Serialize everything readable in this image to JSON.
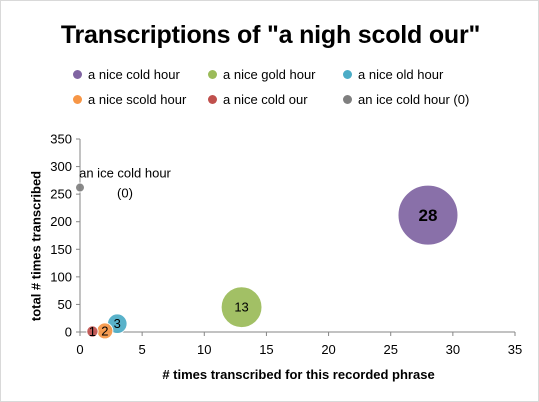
{
  "chart_data": {
    "type": "bubble",
    "title": "Transcriptions of \"a nigh scold our\"",
    "xlabel": "# times transcribed for this recorded phrase",
    "ylabel": "total # times transcribed",
    "xlim": [
      0,
      35
    ],
    "ylim": [
      0,
      350
    ],
    "x_ticks": [
      "0",
      "5",
      "10",
      "15",
      "20",
      "25",
      "30",
      "35"
    ],
    "y_ticks": [
      "0",
      "50",
      "100",
      "150",
      "200",
      "250",
      "300",
      "350"
    ],
    "grid": false,
    "legend_position": "top",
    "series": [
      {
        "name": "a nice cold hour",
        "color": "#8064a2",
        "x": 28,
        "y": 212,
        "size": 28,
        "label": "28"
      },
      {
        "name": "a nice gold hour",
        "color": "#9bbb59",
        "x": 13,
        "y": 45,
        "size": 13,
        "label": "13"
      },
      {
        "name": "a nice old hour",
        "color": "#4bacc6",
        "x": 3,
        "y": 15,
        "size": 3,
        "label": "3"
      },
      {
        "name": "a nice scold hour",
        "color": "#f79646",
        "x": 2,
        "y": 2,
        "size": 2,
        "label": "2"
      },
      {
        "name": "a nice cold our",
        "color": "#c0504d",
        "x": 1,
        "y": 1,
        "size": 1,
        "label": "1"
      },
      {
        "name": "an ice cold hour (0)",
        "color": "#7f7f7f",
        "x": 0,
        "y": 262,
        "size": 0.5,
        "label": "an ice cold hour (0)"
      }
    ]
  }
}
